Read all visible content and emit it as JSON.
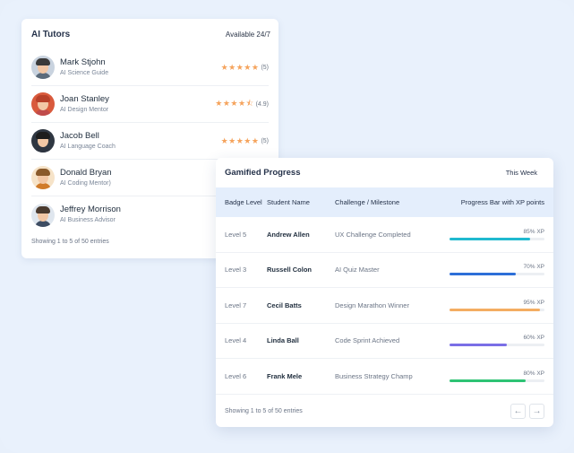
{
  "tutors": {
    "title": "AI Tutors",
    "status": "Available 24/7",
    "items": [
      {
        "name": "Mark Stjohn",
        "role": "AI Science Guide",
        "stars": "★★★★★",
        "rating": "(5)",
        "hair": "#3a3a3a",
        "shirt": "#5b6b7b",
        "bg": "#c9d3df"
      },
      {
        "name": "Joan Stanley",
        "role": "AI Design Mentor",
        "stars": "★★★★⯪",
        "rating": "(4.9)",
        "hair": "#b8412a",
        "shirt": "#c04b4b",
        "bg": "#d95a3c"
      },
      {
        "name": "Jacob Bell",
        "role": "AI Language Coach",
        "stars": "★★★★★",
        "rating": "(5)",
        "hair": "#1d1d1d",
        "shirt": "#2d3440",
        "bg": "#2f3742"
      },
      {
        "name": "Donald Bryan",
        "role": "AI Coding Mentor)",
        "stars": "",
        "rating": "",
        "hair": "#8a5a2b",
        "shirt": "#d07b2a",
        "bg": "#f6e3c8"
      },
      {
        "name": "Jeffrey Morrison",
        "role": "AI Business Advisor",
        "stars": "",
        "rating": "",
        "hair": "#4a3a2e",
        "shirt": "#3e4d63",
        "bg": "#dfe6ee"
      }
    ],
    "footer": "Showing 1 to 5 of 50 entries"
  },
  "gamified": {
    "title": "Gamified Progress",
    "filter": "This Week",
    "columns": [
      "Badge Level",
      "Student Name",
      "Challenge / Milestone",
      "Progress Bar with XP points"
    ],
    "rows": [
      {
        "level": "Level 5",
        "student": "Andrew Allen",
        "challenge": "UX Challenge Completed",
        "xp_label": "85% XP",
        "xp": 0.85,
        "color": "#20b9cf"
      },
      {
        "level": "Level 3",
        "student": "Russell Colon",
        "challenge": "AI Quiz Master",
        "xp_label": "70% XP",
        "xp": 0.7,
        "color": "#2d6fd8"
      },
      {
        "level": "Level 7",
        "student": "Cecil Batts",
        "challenge": "Design Marathon Winner",
        "xp_label": "95% XP",
        "xp": 0.95,
        "color": "#f4ad62"
      },
      {
        "level": "Level 4",
        "student": "Linda Ball",
        "challenge": "Code Sprint Achieved",
        "xp_label": "60% XP",
        "xp": 0.6,
        "color": "#7a6ee6"
      },
      {
        "level": "Level 6",
        "student": "Frank Mele",
        "challenge": "Business Strategy Champ",
        "xp_label": "80% XP",
        "xp": 0.8,
        "color": "#2ec374"
      }
    ],
    "footer": "Showing 1 to 5 of 50 entries",
    "prev_icon": "←",
    "next_icon": "→"
  }
}
